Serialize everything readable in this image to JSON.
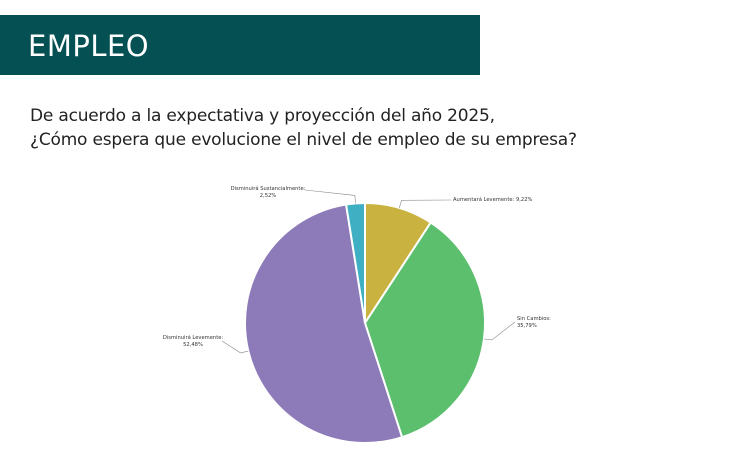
{
  "header": {
    "title": "EMPLEO"
  },
  "question": {
    "line1": "De acuerdo a la expectativa y proyección del año 2025,",
    "line2": "¿Cómo espera que evolucione el nivel de empleo de su empresa?"
  },
  "chart_data": {
    "type": "pie",
    "title": "",
    "start_angle_deg": 0,
    "direction": "clockwise",
    "slices": [
      {
        "label": "Aumentará Levemente",
        "value": 9.22,
        "value_label": "9,22%",
        "color": "#C9B23F"
      },
      {
        "label": "Sin Cambios",
        "value": 35.79,
        "value_label": "35,79%",
        "color": "#5BBF6E"
      },
      {
        "label": "Disminuirá Levemente",
        "value": 52.48,
        "value_label": "52,48%",
        "color": "#8C7BB8"
      },
      {
        "label": "Disminuirá Sustancialmente",
        "value": 2.52,
        "value_label": "2,52%",
        "color": "#3FAFC4"
      }
    ]
  }
}
